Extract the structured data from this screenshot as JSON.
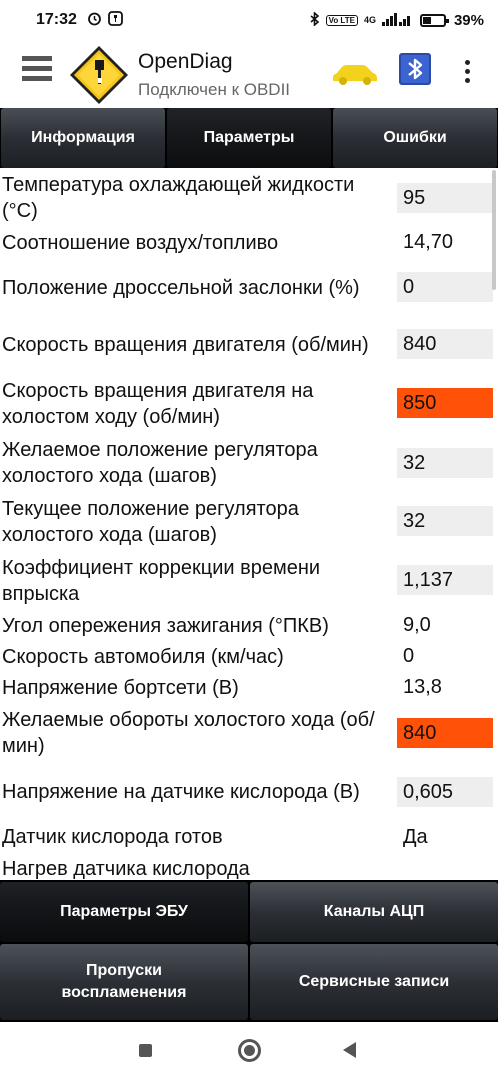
{
  "status_bar": {
    "time": "17:32",
    "network": "4G",
    "volte": "Vo LTE",
    "battery": "39%"
  },
  "app": {
    "title": "OpenDiag",
    "subtitle": "Подключен к OBDII",
    "colors": {
      "accent_car": "#f2d21b",
      "tab_bg": "#2b2f35",
      "alert": "#ff5208"
    }
  },
  "tabs": [
    {
      "label": "Информация"
    },
    {
      "label": "Параметры"
    },
    {
      "label": "Ошибки"
    }
  ],
  "parameters": [
    {
      "label": "Температура охлаждающей жидкости (°C)",
      "value": "95"
    },
    {
      "label": "Соотношение воздух/топливо",
      "value": "14,70"
    },
    {
      "label": "Положение дроссельной заслонки (%)",
      "value": "0"
    },
    {
      "label": "Скорость вращения двигателя (об/мин)",
      "value": "840"
    },
    {
      "label": "Скорость вращения двигателя на холостом ходу (об/мин)",
      "value": "850"
    },
    {
      "label": "Желаемое положение регулятора холостого хода (шагов)",
      "value": "32"
    },
    {
      "label": "Текущее положение регулятора холостого хода (шагов)",
      "value": "32"
    },
    {
      "label": "Коэффициент коррекции времени впрыска",
      "value": "1,137"
    },
    {
      "label": "Угол опережения зажигания (°ПКВ)",
      "value": "9,0"
    },
    {
      "label": "Скорость автомобиля (км/час)",
      "value": "0"
    },
    {
      "label": "Напряжение бортсети (В)",
      "value": "13,8"
    },
    {
      "label": "Желаемые обороты холостого хода (об/мин)",
      "value": "840"
    },
    {
      "label": "Напряжение на датчике кислорода (В)",
      "value": "0,605"
    },
    {
      "label": "Датчик кислорода готов",
      "value": "Да"
    },
    {
      "label": "Нагрев датчика кислорода",
      "value": ""
    }
  ],
  "bottom_buttons": {
    "ecu_params": "Параметры ЭБУ",
    "adc_channels": "Каналы АЦП",
    "misfires": "Пропуски воспламенения",
    "service_records": "Сервисные записи"
  }
}
